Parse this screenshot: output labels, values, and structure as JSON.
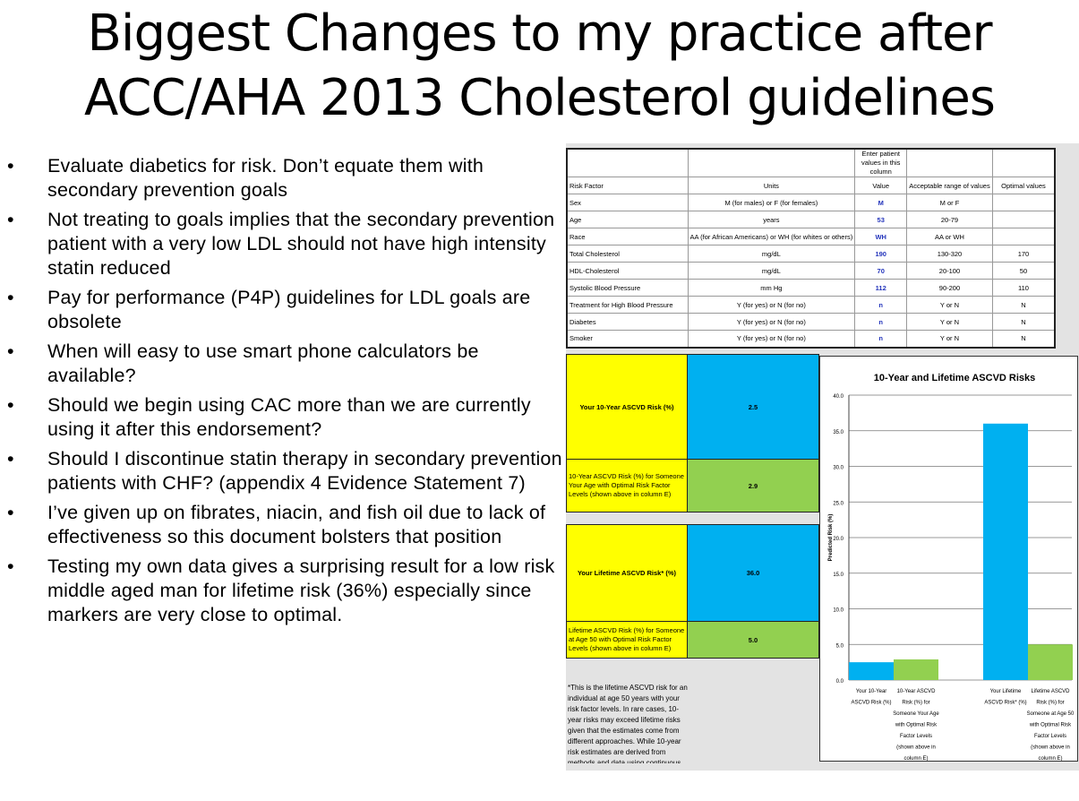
{
  "title": [
    "Biggest Changes to my practice after",
    "ACC/AHA 2013 Cholesterol guidelines"
  ],
  "bullets": [
    "Evaluate diabetics for risk.  Don’t equate them with secondary prevention goals",
    "Not treating to goals implies that the secondary prevention patient with a very low LDL should not have high intensity statin reduced",
    "Pay for performance (P4P) guidelines for LDL goals are obsolete",
    "When will easy to use smart phone calculators be available?",
    "Should we begin using CAC more than we are currently using it after this endorsement?",
    "Should I discontinue statin therapy in secondary prevention patients with CHF? (appendix 4 Evidence Statement 7)",
    "I’ve given up on fibrates, niacin, and fish oil due to lack of effectiveness so this document bolsters that position",
    "Testing my own data gives a surprising result for a low risk middle aged man for lifetime risk (36%) especially since markers are very close to optimal."
  ],
  "bullet_char": "•",
  "table": {
    "enter_note": "Enter patient values in this column",
    "headers": [
      "Risk Factor",
      "Units",
      "Value",
      "Acceptable range of values",
      "Optimal values"
    ],
    "rows": [
      [
        "Sex",
        "M (for males) or F (for females)",
        "M",
        "M or F",
        ""
      ],
      [
        "Age",
        "years",
        "53",
        "20-79",
        ""
      ],
      [
        "Race",
        "AA (for African Americans) or WH (for whites or others)",
        "WH",
        "AA or WH",
        ""
      ],
      [
        "Total Cholesterol",
        "mg/dL",
        "190",
        "130-320",
        "170"
      ],
      [
        "HDL-Cholesterol",
        "mg/dL",
        "70",
        "20-100",
        "50"
      ],
      [
        "Systolic Blood Pressure",
        "mm Hg",
        "112",
        "90-200",
        "110"
      ],
      [
        "Treatment for High Blood Pressure",
        "Y (for yes) or N (for no)",
        "n",
        "Y or N",
        "N"
      ],
      [
        "Diabetes",
        "Y (for yes) or N (for no)",
        "n",
        "Y or N",
        "N"
      ],
      [
        "Smoker",
        "Y (for yes) or N (for no)",
        "n",
        "Y or N",
        "N"
      ]
    ]
  },
  "results": [
    {
      "label": "Your 10-Year ASCVD Risk (%)",
      "value": "2.5"
    },
    {
      "label": "10-Year ASCVD Risk (%) for Someone Your Age with Optimal Risk Factor Levels (shown above in column E)",
      "value": "2.9"
    },
    {
      "label": "Your Lifetime ASCVD Risk* (%)",
      "value": "36.0"
    },
    {
      "label": "Lifetime ASCVD Risk (%) for Someone at Age 50 with Optimal Risk Factor Levels (shown above in column E)",
      "value": "5.0"
    }
  ],
  "footnote": "*This is the lifetime ASCVD risk for an individual at age 50 years with your risk factor levels. In rare cases, 10-year risks may exceed lifetime risks given that the estimates come from different approaches. While 10-year risk estimates are derived from methods and data using continuous",
  "colors": {
    "yellow": "#ffff00",
    "blue": "#00b0f0",
    "green": "#92d050"
  },
  "chart_data": {
    "type": "bar",
    "title": "10-Year and Lifetime ASCVD Risks",
    "ylabel": "Predicted Risk (%)",
    "xlabel": "",
    "ylim": [
      0,
      40
    ],
    "yticks": [
      "0.0",
      "5.0",
      "10.0",
      "15.0",
      "20.0",
      "25.0",
      "30.0",
      "35.0",
      "40.0"
    ],
    "grid": true,
    "categories": [
      "Your 10-Year ASCVD Risk (%)",
      "10-Year ASCVD Risk (%) for Someone Your Age with Optimal Risk Factor Levels (shown above in column E)",
      "Your Lifetime ASCVD Risk* (%)",
      "Lifetime ASCVD Risk (%) for Someone at Age 50 with Optimal Risk Factor Levels (shown above in column E)"
    ],
    "values": [
      2.5,
      2.9,
      36.0,
      5.0
    ],
    "bar_colors": [
      "#00b0f0",
      "#92d050",
      "#00b0f0",
      "#92d050"
    ]
  }
}
